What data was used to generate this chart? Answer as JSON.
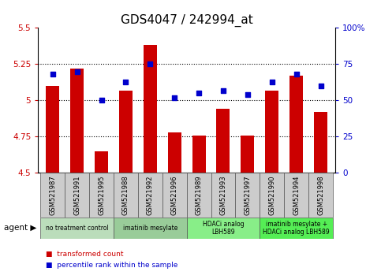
{
  "title": "GDS4047 / 242994_at",
  "samples": [
    "GSM521987",
    "GSM521991",
    "GSM521995",
    "GSM521988",
    "GSM521992",
    "GSM521996",
    "GSM521989",
    "GSM521993",
    "GSM521997",
    "GSM521990",
    "GSM521994",
    "GSM521998"
  ],
  "transformed_count": [
    5.1,
    5.22,
    4.65,
    5.07,
    5.38,
    4.78,
    4.76,
    4.94,
    4.76,
    5.07,
    5.17,
    4.92
  ],
  "percentile_rank": [
    68,
    70,
    50,
    63,
    75,
    52,
    55,
    57,
    54,
    63,
    68,
    60
  ],
  "ylim_left": [
    4.5,
    5.5
  ],
  "ylim_right": [
    0,
    100
  ],
  "yticks_left": [
    4.5,
    4.75,
    5.0,
    5.25,
    5.5
  ],
  "yticks_right": [
    0,
    25,
    50,
    75,
    100
  ],
  "ytick_labels_left": [
    "4.5",
    "4.75",
    "5",
    "5.25",
    "5.5"
  ],
  "ytick_labels_right": [
    "0",
    "25",
    "50",
    "75",
    "100%"
  ],
  "hlines": [
    4.75,
    5.0,
    5.25
  ],
  "bar_color": "#cc0000",
  "dot_color": "#0000cc",
  "agent_groups": [
    {
      "label": "no treatment control",
      "start": 0,
      "end": 3,
      "color": "#bbddbb"
    },
    {
      "label": "imatinib mesylate",
      "start": 3,
      "end": 6,
      "color": "#99cc99"
    },
    {
      "label": "HDACi analog\nLBH589",
      "start": 6,
      "end": 9,
      "color": "#88ee88"
    },
    {
      "label": "imatinib mesylate +\nHDACi analog LBH589",
      "start": 9,
      "end": 12,
      "color": "#55ee55"
    }
  ],
  "agent_label": "agent",
  "legend_bar_label": "transformed count",
  "legend_dot_label": "percentile rank within the sample",
  "title_fontsize": 11,
  "tick_fontsize": 7.5,
  "bar_width": 0.55,
  "xlim": [
    -0.6,
    11.6
  ],
  "xtick_bg_color": "#cccccc",
  "border_color": "#555555"
}
